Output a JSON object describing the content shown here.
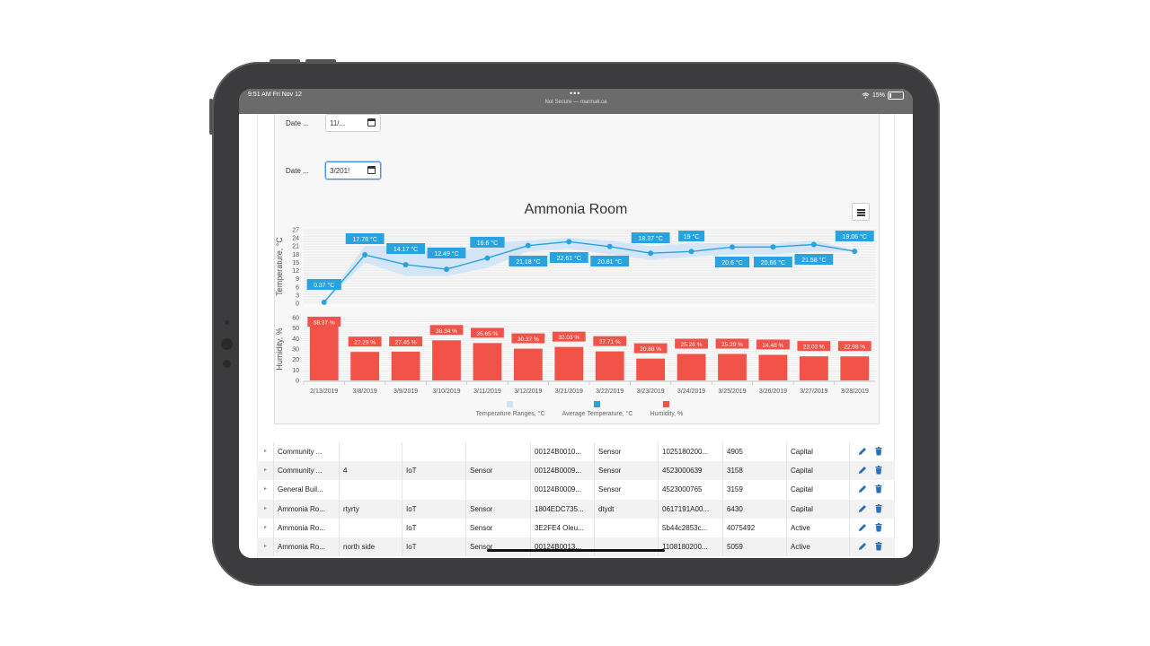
{
  "status_bar": {
    "time": "9:51 AM  Fri Nov 12",
    "dots": "•••",
    "url": "Not Secure — marmak.ca",
    "battery": "15%"
  },
  "filters": {
    "date_from_label": "Date ...",
    "date_from_value": "11/...",
    "date_to_label": "Date ...",
    "date_to_value": "3/201!"
  },
  "chart": {
    "title": "Ammonia Room",
    "menu_icon": "hamburger-icon",
    "colors": {
      "temperature": "#29a3e0",
      "range": "#cfe3f7",
      "humidity": "#f25349"
    }
  },
  "chart_data": [
    {
      "type": "line",
      "ylabel": "Temperature, °C",
      "ylim": [
        0,
        27
      ],
      "yticks": [
        "0",
        "3",
        "6",
        "9",
        "12",
        "15",
        "18",
        "21",
        "24",
        "27"
      ],
      "categories": [
        "2/13/2019",
        "3/8/2019",
        "3/9/2019",
        "3/10/2019",
        "3/11/2019",
        "3/12/2019",
        "3/21/2019",
        "3/22/2019",
        "3/23/2019",
        "3/24/2019",
        "3/25/2019",
        "3/26/2019",
        "3/27/2019",
        "3/28/2019"
      ],
      "series": [
        {
          "name": "Average Temperature, °C",
          "values": [
            0.37,
            17.78,
            14.17,
            12.49,
            16.6,
            21.18,
            22.61,
            20.81,
            18.37,
            19,
            20.6,
            20.66,
            21.58,
            19.06
          ],
          "labels": [
            "0.37 °C",
            "17.78 °C",
            "14.17 °C",
            "12.49 °C",
            "16.6 °C",
            "21.18 °C",
            "22.61 °C",
            "20.81 °C",
            "18.37 °C",
            "19 °C",
            "20.6 °C",
            "20.66 °C",
            "21.58 °C",
            "19.06 °C"
          ]
        },
        {
          "name": "Temperature Ranges, °C",
          "low": [
            0.37,
            15,
            10,
            10,
            13,
            19,
            20,
            18,
            16,
            17,
            18,
            18,
            19,
            19
          ],
          "high": [
            0.37,
            21,
            21,
            17,
            22,
            23,
            24,
            23,
            21,
            22,
            22,
            22,
            23,
            19.5
          ]
        }
      ]
    },
    {
      "type": "bar",
      "ylabel": "Humidity, %",
      "ylim": [
        0,
        60
      ],
      "yticks": [
        "0",
        "10",
        "20",
        "30",
        "40",
        "50",
        "60"
      ],
      "categories": [
        "2/13/2019",
        "3/8/2019",
        "3/9/2019",
        "3/10/2019",
        "3/11/2019",
        "3/12/2019",
        "3/21/2019",
        "3/22/2019",
        "3/23/2019",
        "3/24/2019",
        "3/25/2019",
        "3/26/2019",
        "3/27/2019",
        "3/28/2019"
      ],
      "series": [
        {
          "name": "Humidity, %",
          "values": [
            58.37,
            27.29,
            27.45,
            38.34,
            35.65,
            30.37,
            32.03,
            27.71,
            20.88,
            25.26,
            25.29,
            24.48,
            23.03,
            22.98
          ],
          "labels": [
            "58.37 %",
            "27.29 %",
            "27.45 %",
            "38.34 %",
            "35.65 %",
            "30.37 %",
            "32.03 %",
            "27.71 %",
            "20.88 %",
            "25.26 %",
            "25.29 %",
            "24.48 %",
            "23.03 %",
            "22.98 %"
          ]
        }
      ]
    }
  ],
  "legend": [
    "Temperature Ranges, °C",
    "Average Temperature, °C",
    "Humidity, %"
  ],
  "table": {
    "rows": [
      [
        "Community ...",
        "",
        "",
        "",
        "00124B0010...",
        "Sensor",
        "1025180200...",
        "4905",
        "Capital"
      ],
      [
        "Community ...",
        "4",
        "IoT",
        "Sensor",
        "00124B0009...",
        "Sensor",
        "4523000639",
        "3158",
        "Capital"
      ],
      [
        "General Buil...",
        "",
        "",
        "",
        "00124B0009...",
        "Sensor",
        "4523000765",
        "3159",
        "Capital"
      ],
      [
        "Ammonia Ro...",
        "rtyrty",
        "IoT",
        "Sensor",
        "1804EDC735...",
        "dtydt",
        "0617191A00...",
        "6430",
        "Capital"
      ],
      [
        "Ammonia Ro...",
        "",
        "IoT",
        "Sensor",
        "3E2FE4 Oleu...",
        "",
        "5b44c2853c...",
        "4075492",
        "Active"
      ],
      [
        "Ammonia Ro...",
        "north side",
        "IoT",
        "Sensor",
        "00124B0013...",
        "",
        "1108180200...",
        "5059",
        "Active"
      ]
    ],
    "edit_icon": "pencil-icon",
    "delete_icon": "trash-icon"
  }
}
